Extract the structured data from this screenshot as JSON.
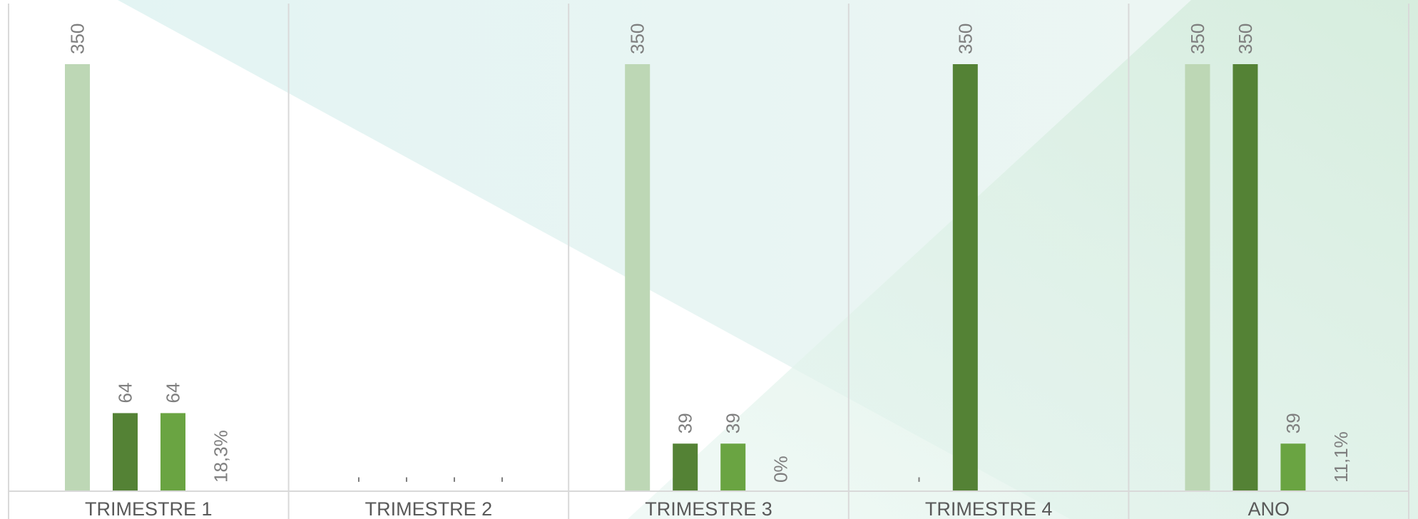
{
  "chart_data": {
    "type": "bar",
    "categories": [
      "TRIMESTRE 1",
      "TRIMESTRE 2",
      "TRIMESTRE 3",
      "TRIMESTRE 4",
      "ANO"
    ],
    "series": [
      {
        "color": "#bdd7b5",
        "values": [
          350,
          null,
          350,
          null,
          350
        ],
        "labels": [
          "350",
          "-",
          "350",
          "-",
          "350"
        ]
      },
      {
        "color": "#548235",
        "values": [
          64,
          null,
          39,
          350,
          350
        ],
        "labels": [
          "64",
          "-",
          "39",
          "350",
          "350"
        ]
      },
      {
        "color": "#6aa442",
        "values": [
          64,
          null,
          39,
          null,
          39
        ],
        "labels": [
          "64",
          "-",
          "39",
          "",
          "39"
        ]
      },
      {
        "color": "#7f7f7f",
        "values": [
          0.183,
          null,
          0,
          null,
          0.111
        ],
        "labels": [
          "18,3%",
          "-",
          "0%",
          "",
          "11,1%"
        ],
        "is_percentage": true
      }
    ],
    "ylim": [
      0,
      350
    ],
    "grid": false,
    "legend": "none",
    "colors": {
      "axis": "#d9d9d9",
      "tick_text": "#595959",
      "label_text": "#7f7f7f",
      "bg_accent_1": "#d6eeea",
      "bg_accent_2": "#cfe8d9"
    }
  }
}
